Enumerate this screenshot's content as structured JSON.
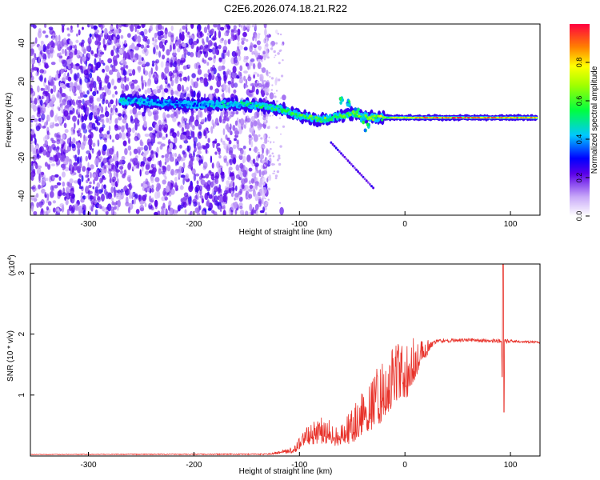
{
  "title": "C2E6.2026.074.18.21.R22",
  "chart_data": [
    {
      "type": "heatmap",
      "xlabel": "Height of straight line (km)",
      "ylabel": "Frequency (Hz)",
      "xlim": [
        -355,
        128
      ],
      "ylim": [
        -50,
        50
      ],
      "xticks": [
        -300,
        -200,
        -100,
        0,
        100
      ],
      "yticks": [
        40,
        20,
        0,
        -20,
        -40
      ],
      "colorbar": {
        "label": "Normalized spectral amplitude",
        "range": [
          0,
          1
        ],
        "ticks": [
          0.0,
          0.2,
          0.4,
          0.6,
          0.8
        ],
        "tick_labels": [
          "0.0",
          "0.2",
          "0.4",
          "0.6",
          "0.8"
        ]
      },
      "features": {
        "noise_region_x": [
          -355,
          -130
        ],
        "signal_track": [
          {
            "x": -270,
            "freq": 10,
            "amp": 0.45
          },
          {
            "x": -240,
            "freq": 9,
            "amp": 0.4
          },
          {
            "x": -210,
            "freq": 8,
            "amp": 0.35
          },
          {
            "x": -180,
            "freq": 8,
            "amp": 0.45
          },
          {
            "x": -150,
            "freq": 8,
            "amp": 0.5
          },
          {
            "x": -120,
            "freq": 6,
            "amp": 0.55
          },
          {
            "x": -100,
            "freq": 2,
            "amp": 0.6
          },
          {
            "x": -80,
            "freq": 0,
            "amp": 0.6
          },
          {
            "x": -50,
            "freq": 3,
            "amp": 0.65
          },
          {
            "x": -30,
            "freq": 1,
            "amp": 0.7
          },
          {
            "x": 0,
            "freq": 1,
            "amp": 0.8
          },
          {
            "x": 40,
            "freq": 1,
            "amp": 0.95
          },
          {
            "x": 80,
            "freq": 1,
            "amp": 0.95
          },
          {
            "x": 125,
            "freq": 1,
            "amp": 0.9
          }
        ]
      }
    },
    {
      "type": "line",
      "xlabel": "Height of straight line (km)",
      "ylabel": "SNR (10 * v/v)",
      "multiplier_label": "(x10",
      "multiplier_exp": "4",
      "multiplier_close": ")",
      "xlim": [
        -355,
        128
      ],
      "ylim": [
        0,
        3.15
      ],
      "xticks": [
        -300,
        -200,
        -100,
        0,
        100
      ],
      "yticks": [
        1,
        2,
        3
      ],
      "series": [
        {
          "name": "SNR",
          "color": "#e8322a",
          "envelope": [
            {
              "x": -355,
              "base": 0.02,
              "peak": 0.03
            },
            {
              "x": -130,
              "base": 0.02,
              "peak": 0.04
            },
            {
              "x": -105,
              "base": 0.05,
              "peak": 0.15
            },
            {
              "x": -95,
              "base": 0.15,
              "peak": 0.45
            },
            {
              "x": -80,
              "base": 0.2,
              "peak": 0.65
            },
            {
              "x": -65,
              "base": 0.15,
              "peak": 0.55
            },
            {
              "x": -50,
              "base": 0.2,
              "peak": 0.8
            },
            {
              "x": -35,
              "base": 0.35,
              "peak": 1.2
            },
            {
              "x": -25,
              "base": 0.5,
              "peak": 1.5
            },
            {
              "x": -10,
              "base": 0.8,
              "peak": 1.8
            },
            {
              "x": 5,
              "base": 1.0,
              "peak": 1.95
            },
            {
              "x": 15,
              "base": 1.5,
              "peak": 1.9
            },
            {
              "x": 30,
              "base": 1.85,
              "peak": 1.92
            },
            {
              "x": 60,
              "base": 1.88,
              "peak": 1.93
            },
            {
              "x": 90,
              "base": 1.85,
              "peak": 1.92
            },
            {
              "x": 110,
              "base": 1.86,
              "peak": 1.9
            },
            {
              "x": 128,
              "base": 1.84,
              "peak": 1.88
            }
          ],
          "spike": {
            "x": 93,
            "max": 3.15,
            "min": 0.72
          }
        }
      ]
    }
  ]
}
